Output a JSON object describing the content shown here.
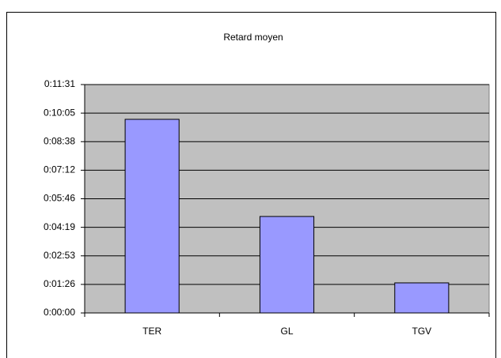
{
  "chart_data": {
    "type": "bar",
    "title": "Retard moyen",
    "categories": [
      "TER",
      "GL",
      "TGV"
    ],
    "values": [
      586,
      292,
      91
    ],
    "color": "#9999ff",
    "plot_background": "#c0c0c0",
    "ylim": [
      0,
      691.2
    ],
    "yticks": [
      {
        "value": 0,
        "label": "0:00:00"
      },
      {
        "value": 86.4,
        "label": "0:01:26"
      },
      {
        "value": 172.8,
        "label": "0:02:53"
      },
      {
        "value": 259.2,
        "label": "0:04:19"
      },
      {
        "value": 345.6,
        "label": "0:05:46"
      },
      {
        "value": 432,
        "label": "0:07:12"
      },
      {
        "value": 518.4,
        "label": "0:08:38"
      },
      {
        "value": 604.8,
        "label": "0:10:05"
      },
      {
        "value": 691.2,
        "label": "0:11:31"
      }
    ],
    "grid": true
  }
}
